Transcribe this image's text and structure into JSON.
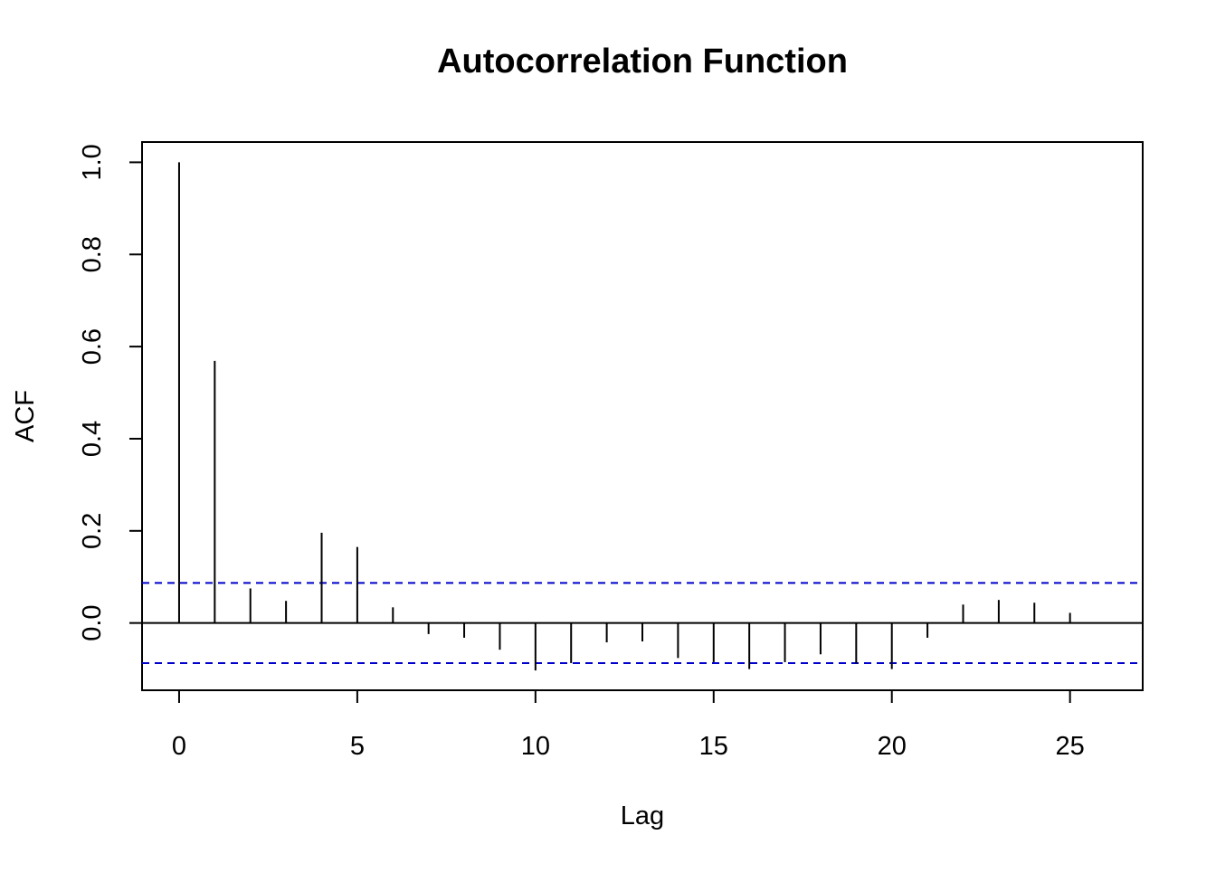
{
  "chart_data": {
    "type": "bar",
    "title": "Autocorrelation Function",
    "xlabel": "Lag",
    "ylabel": "ACF",
    "x_ticks": [
      "0",
      "5",
      "10",
      "15",
      "20",
      "25"
    ],
    "y_ticks": [
      "0.0",
      "0.2",
      "0.4",
      "0.6",
      "0.8",
      "1.0"
    ],
    "xlim": [
      -1.04,
      27.04
    ],
    "ylim": [
      -0.146,
      1.044
    ],
    "lags": [
      0,
      1,
      2,
      3,
      4,
      5,
      6,
      7,
      8,
      9,
      10,
      11,
      12,
      13,
      14,
      15,
      16,
      17,
      18,
      19,
      20,
      21,
      22,
      23,
      24,
      25
    ],
    "values": [
      1.0,
      0.569,
      0.075,
      0.048,
      0.196,
      0.165,
      0.034,
      -0.024,
      -0.032,
      -0.058,
      -0.103,
      -0.087,
      -0.042,
      -0.04,
      -0.076,
      -0.085,
      -0.1,
      -0.085,
      -0.068,
      -0.088,
      -0.1,
      -0.032,
      0.04,
      0.05,
      0.044,
      0.022
    ],
    "confidence_bound": 0.087,
    "colors": {
      "bars": "#000000",
      "zero_line": "#000000",
      "confidence": "#0000cc",
      "frame": "#000000"
    },
    "grid": false,
    "legend": "none"
  }
}
